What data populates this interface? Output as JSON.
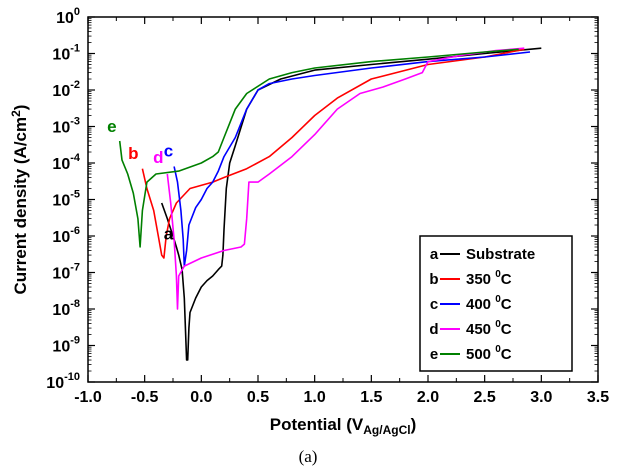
{
  "chart_data": {
    "type": "line",
    "caption": "(a)",
    "xlabel": {
      "main": "Potential (V",
      "sub": "Ag/AgCl",
      "close": ")"
    },
    "ylabel": {
      "main": "Current density (A/cm",
      "sup": "2",
      "close": ")"
    },
    "xlim": [
      -1.0,
      3.5
    ],
    "xticks": [
      "-1.0",
      "-0.5",
      "0.0",
      "0.5",
      "1.0",
      "1.5",
      "2.0",
      "2.5",
      "3.0",
      "3.5"
    ],
    "ylim_log10": [
      -10,
      0
    ],
    "ytick_exponents": [
      "-10",
      "-9",
      "-8",
      "-7",
      "-6",
      "-5",
      "-4",
      "-3",
      "-2",
      "-1",
      "0"
    ],
    "ytick_base": "10",
    "y_scale": "log",
    "legend_position": "lower-right",
    "series": [
      {
        "name": "Substrate",
        "label": "a",
        "legend_text": "Substrate",
        "color": "#000000",
        "label_at": {
          "x": -0.29,
          "y": 8e-07
        },
        "points": [
          [
            -0.35,
            8e-06
          ],
          [
            -0.3,
            3e-06
          ],
          [
            -0.25,
            1e-06
          ],
          [
            -0.22,
            5e-07
          ],
          [
            -0.2,
            3e-07
          ],
          [
            -0.17,
            1.2e-07
          ],
          [
            -0.15,
            2e-08
          ],
          [
            -0.13,
            4e-10
          ],
          [
            -0.12,
            4e-10
          ],
          [
            -0.11,
            3e-09
          ],
          [
            -0.1,
            8e-09
          ],
          [
            -0.05,
            2e-08
          ],
          [
            0.0,
            4e-08
          ],
          [
            0.05,
            6e-08
          ],
          [
            0.1,
            8e-08
          ],
          [
            0.15,
            1.2e-07
          ],
          [
            0.18,
            1.5e-07
          ],
          [
            0.19,
            3e-07
          ],
          [
            0.2,
            1.5e-06
          ],
          [
            0.22,
            2e-05
          ],
          [
            0.25,
            0.0001
          ],
          [
            0.3,
            0.0003
          ],
          [
            0.4,
            0.003
          ],
          [
            0.5,
            0.01
          ],
          [
            0.7,
            0.02
          ],
          [
            1.0,
            0.035
          ],
          [
            1.5,
            0.05
          ],
          [
            2.0,
            0.07
          ],
          [
            2.5,
            0.1
          ],
          [
            3.0,
            0.14
          ]
        ]
      },
      {
        "name": "350 °C",
        "label": "b",
        "legend_text": "350 ",
        "legend_sup": "0",
        "legend_tail": "C",
        "color": "#ff0000",
        "label_at": {
          "x": -0.6,
          "y": 0.00013
        },
        "points": [
          [
            -0.52,
            7e-05
          ],
          [
            -0.48,
            2e-05
          ],
          [
            -0.42,
            5e-06
          ],
          [
            -0.38,
            1e-06
          ],
          [
            -0.35,
            3e-07
          ],
          [
            -0.33,
            2.5e-07
          ],
          [
            -0.31,
            1e-06
          ],
          [
            -0.28,
            3e-06
          ],
          [
            -0.22,
            8e-06
          ],
          [
            -0.1,
            2e-05
          ],
          [
            0.1,
            3e-05
          ],
          [
            0.2,
            4e-05
          ],
          [
            0.4,
            7e-05
          ],
          [
            0.6,
            0.00015
          ],
          [
            0.8,
            0.0005
          ],
          [
            1.0,
            0.002
          ],
          [
            1.2,
            0.006
          ],
          [
            1.5,
            0.02
          ],
          [
            2.0,
            0.05
          ],
          [
            2.5,
            0.08
          ],
          [
            2.85,
            0.13
          ]
        ]
      },
      {
        "name": "400 °C",
        "label": "c",
        "legend_text": "400 ",
        "legend_sup": "0",
        "legend_tail": "C",
        "color": "#0000ff",
        "label_at": {
          "x": -0.29,
          "y": 0.00015
        },
        "points": [
          [
            -0.24,
            8e-05
          ],
          [
            -0.21,
            3e-05
          ],
          [
            -0.18,
            5e-06
          ],
          [
            -0.16,
            8e-07
          ],
          [
            -0.15,
            1.5e-07
          ],
          [
            -0.13,
            4e-07
          ],
          [
            -0.11,
            2e-06
          ],
          [
            -0.05,
            6e-06
          ],
          [
            0.0,
            1e-05
          ],
          [
            0.05,
            2e-05
          ],
          [
            0.1,
            3e-05
          ],
          [
            0.15,
            6e-05
          ],
          [
            0.2,
            0.00015
          ],
          [
            0.3,
            0.0005
          ],
          [
            0.4,
            0.003
          ],
          [
            0.5,
            0.01
          ],
          [
            0.6,
            0.015
          ],
          [
            0.8,
            0.02
          ],
          [
            1.0,
            0.025
          ],
          [
            1.5,
            0.04
          ],
          [
            2.0,
            0.06
          ],
          [
            2.5,
            0.08
          ],
          [
            2.9,
            0.11
          ]
        ]
      },
      {
        "name": "450 °C",
        "label": "d",
        "legend_text": "450 ",
        "legend_sup": "0",
        "legend_tail": "C",
        "color": "#ff00ff",
        "label_at": {
          "x": -0.38,
          "y": 0.0001
        },
        "points": [
          [
            -0.3,
            5e-05
          ],
          [
            -0.27,
            8e-06
          ],
          [
            -0.24,
            8e-07
          ],
          [
            -0.22,
            8e-08
          ],
          [
            -0.21,
            1e-08
          ],
          [
            -0.2,
            8e-08
          ],
          [
            -0.15,
            1.5e-07
          ],
          [
            0.0,
            2.5e-07
          ],
          [
            0.2,
            4e-07
          ],
          [
            0.35,
            5e-07
          ],
          [
            0.38,
            6e-07
          ],
          [
            0.4,
            3e-06
          ],
          [
            0.42,
            3e-05
          ],
          [
            0.5,
            3e-05
          ],
          [
            0.6,
            5e-05
          ],
          [
            0.8,
            0.00015
          ],
          [
            1.0,
            0.0006
          ],
          [
            1.2,
            0.003
          ],
          [
            1.4,
            0.008
          ],
          [
            1.6,
            0.012
          ],
          [
            1.8,
            0.02
          ],
          [
            1.95,
            0.03
          ],
          [
            2.0,
            0.06
          ],
          [
            2.3,
            0.09
          ],
          [
            2.6,
            0.12
          ],
          [
            2.85,
            0.14
          ]
        ]
      },
      {
        "name": "500 °C",
        "label": "e",
        "legend_text": "500 ",
        "legend_sup": "0",
        "legend_tail": "C",
        "color": "#008000",
        "label_at": {
          "x": -0.79,
          "y": 0.0007
        },
        "points": [
          [
            -0.72,
            0.0004
          ],
          [
            -0.7,
            0.00012
          ],
          [
            -0.65,
            5e-05
          ],
          [
            -0.6,
            1.5e-05
          ],
          [
            -0.56,
            3e-06
          ],
          [
            -0.54,
            5e-07
          ],
          [
            -0.52,
            5e-06
          ],
          [
            -0.48,
            3e-05
          ],
          [
            -0.4,
            5e-05
          ],
          [
            -0.2,
            6e-05
          ],
          [
            0.0,
            0.0001
          ],
          [
            0.1,
            0.00015
          ],
          [
            0.15,
            0.0002
          ],
          [
            0.2,
            0.0005
          ],
          [
            0.3,
            0.003
          ],
          [
            0.4,
            0.008
          ],
          [
            0.6,
            0.02
          ],
          [
            0.8,
            0.03
          ],
          [
            1.0,
            0.04
          ],
          [
            1.5,
            0.06
          ],
          [
            2.0,
            0.08
          ],
          [
            2.5,
            0.11
          ],
          [
            2.8,
            0.13
          ]
        ]
      }
    ]
  }
}
